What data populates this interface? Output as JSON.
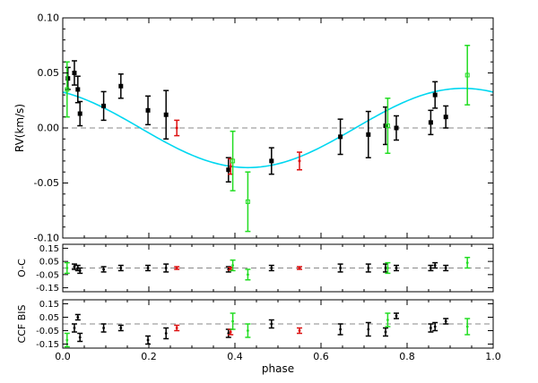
{
  "colors": {
    "black": "#000000",
    "red": "#dd1111",
    "green": "#22dd22",
    "model": "#00d7f0",
    "zero": "#888888"
  },
  "chart_data": [
    {
      "type": "scatter",
      "title": "",
      "xlabel": "",
      "ylabel": "RV(km/s)",
      "xlim": [
        0.0,
        1.0
      ],
      "ylim": [
        -0.1,
        0.1
      ],
      "yticks": [
        "0.10",
        "0.05",
        "0.00",
        "-0.05",
        "-0.10"
      ],
      "model_curve": {
        "type": "line",
        "color": "model",
        "amplitude_kms": 0.036,
        "minimum_phase": 0.43
      },
      "zero_line": true,
      "series": [
        {
          "color": "black",
          "marker": "filled-square",
          "points": [
            {
              "x": 0.012,
              "y": 0.045,
              "err": 0.01
            },
            {
              "x": 0.027,
              "y": 0.05,
              "err": 0.011
            },
            {
              "x": 0.035,
              "y": 0.035,
              "err": 0.012
            },
            {
              "x": 0.04,
              "y": 0.013,
              "err": 0.011
            },
            {
              "x": 0.095,
              "y": 0.02,
              "err": 0.013
            },
            {
              "x": 0.135,
              "y": 0.038,
              "err": 0.011
            },
            {
              "x": 0.198,
              "y": 0.016,
              "err": 0.013
            },
            {
              "x": 0.24,
              "y": 0.012,
              "err": 0.022
            },
            {
              "x": 0.385,
              "y": -0.038,
              "err": 0.011
            },
            {
              "x": 0.485,
              "y": -0.03,
              "err": 0.012
            },
            {
              "x": 0.645,
              "y": -0.008,
              "err": 0.016
            },
            {
              "x": 0.71,
              "y": -0.006,
              "err": 0.021
            },
            {
              "x": 0.75,
              "y": 0.002,
              "err": 0.017
            },
            {
              "x": 0.775,
              "y": 0.0,
              "err": 0.011
            },
            {
              "x": 0.855,
              "y": 0.005,
              "err": 0.011
            },
            {
              "x": 0.865,
              "y": 0.03,
              "err": 0.012
            },
            {
              "x": 0.89,
              "y": 0.01,
              "err": 0.01
            }
          ]
        },
        {
          "color": "red",
          "marker": "dot",
          "points": [
            {
              "x": 0.265,
              "y": 0.0,
              "err": 0.007
            },
            {
              "x": 0.39,
              "y": -0.035,
              "err": 0.007
            },
            {
              "x": 0.55,
              "y": -0.03,
              "err": 0.008
            }
          ]
        },
        {
          "color": "green",
          "marker": "open-square",
          "points": [
            {
              "x": 0.01,
              "y": 0.035,
              "err": 0.025
            },
            {
              "x": 0.395,
              "y": -0.03,
              "err": 0.027
            },
            {
              "x": 0.43,
              "y": -0.067,
              "err": 0.027
            },
            {
              "x": 0.755,
              "y": 0.002,
              "err": 0.025
            },
            {
              "x": 0.94,
              "y": 0.048,
              "err": 0.027
            }
          ]
        }
      ]
    },
    {
      "type": "scatter",
      "title": "",
      "xlabel": "",
      "ylabel": "O-C",
      "xlim": [
        0.0,
        1.0
      ],
      "ylim": [
        -0.18,
        0.18
      ],
      "yticks": [
        "0.15",
        "0.05",
        "-0.05",
        "-0.15"
      ],
      "zero_line": true,
      "series": [
        {
          "color": "black",
          "points": [
            {
              "x": 0.027,
              "y": 0.01,
              "err": 0.02
            },
            {
              "x": 0.035,
              "y": 0.0,
              "err": 0.02
            },
            {
              "x": 0.04,
              "y": -0.02,
              "err": 0.02
            },
            {
              "x": 0.095,
              "y": -0.01,
              "err": 0.02
            },
            {
              "x": 0.135,
              "y": 0.0,
              "err": 0.02
            },
            {
              "x": 0.198,
              "y": 0.0,
              "err": 0.02
            },
            {
              "x": 0.24,
              "y": 0.0,
              "err": 0.03
            },
            {
              "x": 0.385,
              "y": -0.01,
              "err": 0.02
            },
            {
              "x": 0.485,
              "y": 0.0,
              "err": 0.02
            },
            {
              "x": 0.645,
              "y": 0.0,
              "err": 0.03
            },
            {
              "x": 0.71,
              "y": 0.0,
              "err": 0.03
            },
            {
              "x": 0.75,
              "y": 0.0,
              "err": 0.03
            },
            {
              "x": 0.775,
              "y": 0.0,
              "err": 0.02
            },
            {
              "x": 0.855,
              "y": 0.0,
              "err": 0.02
            },
            {
              "x": 0.865,
              "y": 0.02,
              "err": 0.02
            },
            {
              "x": 0.89,
              "y": 0.0,
              "err": 0.02
            }
          ]
        },
        {
          "color": "red",
          "points": [
            {
              "x": 0.265,
              "y": 0.0,
              "err": 0.01
            },
            {
              "x": 0.39,
              "y": -0.005,
              "err": 0.01
            },
            {
              "x": 0.55,
              "y": 0.0,
              "err": 0.01
            }
          ]
        },
        {
          "color": "green",
          "points": [
            {
              "x": 0.01,
              "y": 0.0,
              "err": 0.04
            },
            {
              "x": 0.395,
              "y": 0.02,
              "err": 0.04
            },
            {
              "x": 0.43,
              "y": -0.05,
              "err": 0.04
            },
            {
              "x": 0.755,
              "y": 0.0,
              "err": 0.04
            },
            {
              "x": 0.94,
              "y": 0.04,
              "err": 0.04
            }
          ]
        }
      ]
    },
    {
      "type": "scatter",
      "title": "",
      "xlabel": "phase",
      "ylabel": "CCF BIS",
      "xlim": [
        0.0,
        1.0
      ],
      "ylim": [
        -0.18,
        0.18
      ],
      "yticks": [
        "0.15",
        "0.05",
        "-0.05",
        "-0.15"
      ],
      "xticks": [
        "0.0",
        "0.2",
        "0.4",
        "0.6",
        "0.8",
        "1.0"
      ],
      "zero_line": true,
      "series": [
        {
          "color": "black",
          "points": [
            {
              "x": 0.027,
              "y": -0.03,
              "err": 0.03
            },
            {
              "x": 0.035,
              "y": 0.05,
              "err": 0.02
            },
            {
              "x": 0.04,
              "y": -0.1,
              "err": 0.03
            },
            {
              "x": 0.095,
              "y": -0.03,
              "err": 0.03
            },
            {
              "x": 0.135,
              "y": -0.03,
              "err": 0.02
            },
            {
              "x": 0.198,
              "y": -0.12,
              "err": 0.03
            },
            {
              "x": 0.24,
              "y": -0.07,
              "err": 0.04
            },
            {
              "x": 0.385,
              "y": -0.07,
              "err": 0.03
            },
            {
              "x": 0.485,
              "y": 0.0,
              "err": 0.03
            },
            {
              "x": 0.645,
              "y": -0.04,
              "err": 0.04
            },
            {
              "x": 0.71,
              "y": -0.04,
              "err": 0.05
            },
            {
              "x": 0.75,
              "y": -0.06,
              "err": 0.03
            },
            {
              "x": 0.775,
              "y": 0.06,
              "err": 0.02
            },
            {
              "x": 0.855,
              "y": -0.03,
              "err": 0.03
            },
            {
              "x": 0.865,
              "y": -0.02,
              "err": 0.03
            },
            {
              "x": 0.89,
              "y": 0.02,
              "err": 0.02
            }
          ]
        },
        {
          "color": "red",
          "points": [
            {
              "x": 0.265,
              "y": -0.03,
              "err": 0.02
            },
            {
              "x": 0.39,
              "y": -0.06,
              "err": 0.02
            },
            {
              "x": 0.55,
              "y": -0.05,
              "err": 0.02
            }
          ]
        },
        {
          "color": "green",
          "points": [
            {
              "x": 0.01,
              "y": -0.12,
              "err": 0.05
            },
            {
              "x": 0.395,
              "y": 0.02,
              "err": 0.06
            },
            {
              "x": 0.43,
              "y": -0.05,
              "err": 0.05
            },
            {
              "x": 0.755,
              "y": 0.03,
              "err": 0.05
            },
            {
              "x": 0.94,
              "y": -0.02,
              "err": 0.06
            }
          ]
        }
      ]
    }
  ]
}
